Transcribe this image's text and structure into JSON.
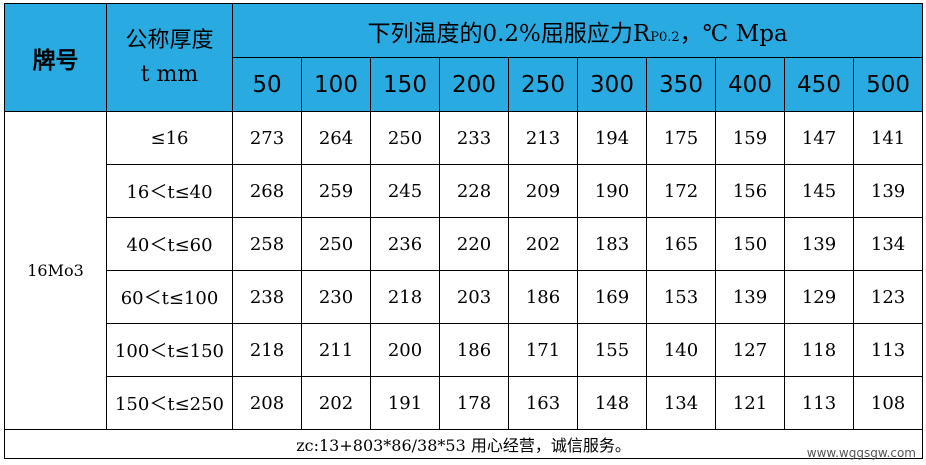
{
  "header": {
    "brand_label": "牌号",
    "thickness_label_line1": "公称厚度",
    "thickness_label_line2": "t mm",
    "title_main": "下列温度的0.2%屈服应力R",
    "title_sub": "P0.2",
    "title_suffix": "，℃ Mpa",
    "temperatures": [
      "50",
      "100",
      "150",
      "200",
      "250",
      "300",
      "350",
      "400",
      "450",
      "500"
    ]
  },
  "grade": "16Mo3",
  "rows": [
    {
      "range": "≤16",
      "values": [
        "273",
        "264",
        "250",
        "233",
        "213",
        "194",
        "175",
        "159",
        "147",
        "141"
      ]
    },
    {
      "range": "16＜t≤40",
      "values": [
        "268",
        "259",
        "245",
        "228",
        "209",
        "190",
        "172",
        "156",
        "145",
        "139"
      ]
    },
    {
      "range": "40＜t≤60",
      "values": [
        "258",
        "250",
        "236",
        "220",
        "202",
        "183",
        "165",
        "150",
        "139",
        "134"
      ]
    },
    {
      "range": "60＜t≤100",
      "values": [
        "238",
        "230",
        "218",
        "203",
        "186",
        "169",
        "153",
        "139",
        "129",
        "123"
      ]
    },
    {
      "range": "100＜t≤150",
      "values": [
        "218",
        "211",
        "200",
        "186",
        "171",
        "155",
        "140",
        "127",
        "118",
        "113"
      ]
    },
    {
      "range": "150＜t≤250",
      "values": [
        "208",
        "202",
        "191",
        "178",
        "163",
        "148",
        "134",
        "121",
        "113",
        "108"
      ]
    }
  ],
  "footer": "zc:13+803*86/38*53 用心经营，诚信服务。",
  "watermark": "www.wggsgw.com",
  "colors": {
    "header_bg": "#29abe2"
  }
}
